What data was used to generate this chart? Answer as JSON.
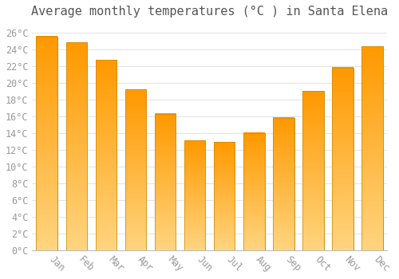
{
  "title": "Average monthly temperatures (°C ) in Santa Elena",
  "months": [
    "Jan",
    "Feb",
    "Mar",
    "Apr",
    "May",
    "Jun",
    "Jul",
    "Aug",
    "Sep",
    "Oct",
    "Nov",
    "Dec"
  ],
  "values": [
    25.5,
    24.8,
    22.7,
    19.2,
    16.3,
    13.1,
    12.9,
    14.0,
    15.8,
    19.0,
    21.8,
    24.3
  ],
  "bar_color_top": "#FFB733",
  "bar_color_bottom": "#FFA500",
  "bar_edge_color": "#CC8800",
  "background_color": "#FFFFFF",
  "grid_color": "#DDDDDD",
  "ylim": [
    0,
    27
  ],
  "ytick_step": 2,
  "title_fontsize": 11,
  "tick_fontsize": 8.5,
  "font_color": "#999999",
  "title_color": "#555555"
}
